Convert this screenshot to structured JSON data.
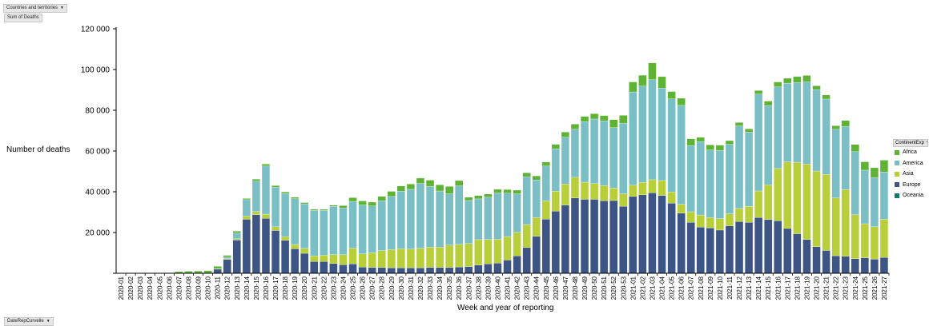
{
  "controls": {
    "filter_label": "Countries and territories",
    "value_field_label": "Sum of Deaths",
    "axis_field_label": "DateRepCurvelle",
    "legend_field_label": "ContinentExp"
  },
  "colors": {
    "Africa": "#5eb234",
    "America": "#7bbfc6",
    "Asia": "#b9cf3a",
    "Europe": "#3c5585",
    "Oceania": "#157a6e"
  },
  "chart_data": {
    "type": "bar",
    "stacked": true,
    "ylabel": "Number of deaths",
    "xlabel": "Week and year of reporting",
    "ylim": [
      0,
      120000
    ],
    "yticks": [
      "120 000",
      "100 000",
      "80 000",
      "60 000",
      "40 000",
      "20 000",
      ""
    ],
    "legend": "right",
    "grid": false,
    "categories": [
      "2020-01",
      "2020-02",
      "2020-03",
      "2020-04",
      "2020-05",
      "2020-06",
      "2020-07",
      "2020-08",
      "2020-09",
      "2020-10",
      "2020-11",
      "2020-12",
      "2020-13",
      "2020-14",
      "2020-15",
      "2020-16",
      "2020-17",
      "2020-18",
      "2020-19",
      "2020-20",
      "2020-21",
      "2020-22",
      "2020-23",
      "2020-24",
      "2020-25",
      "2020-26",
      "2020-27",
      "2020-28",
      "2020-29",
      "2020-30",
      "2020-31",
      "2020-32",
      "2020-33",
      "2020-34",
      "2020-35",
      "2020-36",
      "2020-37",
      "2020-38",
      "2020-39",
      "2020-40",
      "2020-41",
      "2020-42",
      "2020-43",
      "2020-44",
      "2020-45",
      "2020-46",
      "2020-47",
      "2020-48",
      "2020-49",
      "2020-50",
      "2020-51",
      "2020-52",
      "2020-53",
      "2021-01",
      "2021-02",
      "2021-03",
      "2021-04",
      "2021-05",
      "2021-06",
      "2021-07",
      "2021-08",
      "2021-09",
      "2021-10",
      "2021-11",
      "2021-12",
      "2021-13",
      "2021-14",
      "2021-15",
      "2021-16",
      "2021-17",
      "2021-18",
      "2021-19",
      "2021-20",
      "2021-21",
      "2021-22",
      "2021-23",
      "2021-24",
      "2021-25",
      "2021-26",
      "2021-27"
    ],
    "series": [
      {
        "name": "Oceania",
        "values": [
          0,
          0,
          0,
          0,
          0,
          0,
          0,
          0,
          0,
          0,
          0,
          0,
          0,
          0,
          0,
          0,
          0,
          0,
          0,
          0,
          0,
          0,
          0,
          0,
          0,
          0,
          0,
          0,
          0,
          0,
          0,
          0,
          0,
          0,
          0,
          0,
          0,
          0,
          0,
          0,
          0,
          0,
          0,
          0,
          0,
          0,
          0,
          0,
          0,
          0,
          0,
          0,
          0,
          0,
          0,
          0,
          0,
          0,
          0,
          0,
          0,
          0,
          0,
          0,
          0,
          0,
          0,
          0,
          0,
          0,
          0,
          0,
          0,
          0,
          0,
          0,
          0,
          0,
          0,
          0
        ]
      },
      {
        "name": "Europe",
        "values": [
          0,
          0,
          0,
          0,
          0,
          0,
          0,
          0,
          0,
          100,
          2000,
          6800,
          16300,
          26500,
          28700,
          27000,
          21000,
          16200,
          12000,
          9800,
          5800,
          5800,
          4800,
          4200,
          4600,
          3000,
          2900,
          2800,
          2700,
          2700,
          2700,
          2700,
          2800,
          2800,
          2800,
          3100,
          3300,
          4000,
          4600,
          5000,
          6500,
          8500,
          12600,
          18200,
          26600,
          30500,
          33500,
          37000,
          36300,
          36300,
          35600,
          35700,
          32900,
          37700,
          38500,
          39500,
          38200,
          34400,
          29500,
          25000,
          22700,
          22300,
          21200,
          23300,
          25400,
          25000,
          27400,
          26400,
          25800,
          22000,
          19400,
          16600,
          13000,
          11200,
          8600,
          8300,
          7200,
          7600,
          6900,
          7800
        ]
      },
      {
        "name": "Asia",
        "values": [
          0,
          0,
          0,
          0,
          0,
          0,
          0,
          0,
          0,
          0,
          200,
          400,
          600,
          1600,
          1600,
          2000,
          1800,
          1700,
          2100,
          2500,
          2700,
          3000,
          4300,
          4900,
          7700,
          6500,
          7200,
          8300,
          8900,
          9300,
          9200,
          9600,
          10000,
          10000,
          11000,
          11100,
          11300,
          12500,
          12000,
          11800,
          11500,
          11600,
          11300,
          9200,
          9000,
          9800,
          10300,
          10100,
          8400,
          7700,
          7400,
          6200,
          6100,
          5500,
          6100,
          6400,
          7300,
          5500,
          4400,
          5200,
          5900,
          5000,
          5600,
          5900,
          6400,
          7900,
          13000,
          17000,
          25600,
          32700,
          35100,
          37000,
          37200,
          37300,
          28400,
          32800,
          21500,
          16700,
          15900,
          18700
        ]
      },
      {
        "name": "America",
        "values": [
          0,
          0,
          0,
          0,
          0,
          0,
          0,
          0,
          0,
          0,
          0,
          700,
          2900,
          8000,
          14900,
          23600,
          19400,
          21200,
          22500,
          21800,
          22400,
          22100,
          23700,
          22900,
          23000,
          24000,
          22900,
          24500,
          26100,
          28300,
          29300,
          31800,
          29900,
          27600,
          25200,
          28700,
          21100,
          20000,
          20700,
          22600,
          21300,
          18900,
          23400,
          18400,
          17000,
          20800,
          23000,
          23600,
          29700,
          31700,
          31800,
          29600,
          34600,
          45800,
          47300,
          49100,
          45400,
          45700,
          48500,
          32500,
          36000,
          33200,
          33500,
          34100,
          40500,
          36400,
          47500,
          38900,
          40100,
          38600,
          39100,
          40300,
          39900,
          37000,
          33700,
          30900,
          31000,
          26300,
          24100,
          23200
        ]
      },
      {
        "name": "Africa",
        "values": [
          0,
          0,
          0,
          0,
          200,
          300,
          800,
          1000,
          1100,
          1200,
          1200,
          900,
          900,
          600,
          1000,
          1000,
          800,
          800,
          700,
          600,
          500,
          500,
          600,
          1200,
          1800,
          2000,
          1900,
          2100,
          2500,
          2500,
          2600,
          2600,
          3000,
          3000,
          3600,
          2600,
          1600,
          1600,
          1600,
          1800,
          1800,
          1800,
          2000,
          2000,
          2000,
          2200,
          2500,
          2500,
          2600,
          2600,
          2600,
          3900,
          3900,
          4900,
          5300,
          8200,
          5600,
          3600,
          3500,
          3300,
          2100,
          2500,
          2600,
          1800,
          1700,
          1600,
          1800,
          2200,
          2400,
          2400,
          3000,
          3200,
          1900,
          2000,
          1700,
          3000,
          3500,
          4100,
          4900,
          5800
        ]
      }
    ]
  }
}
